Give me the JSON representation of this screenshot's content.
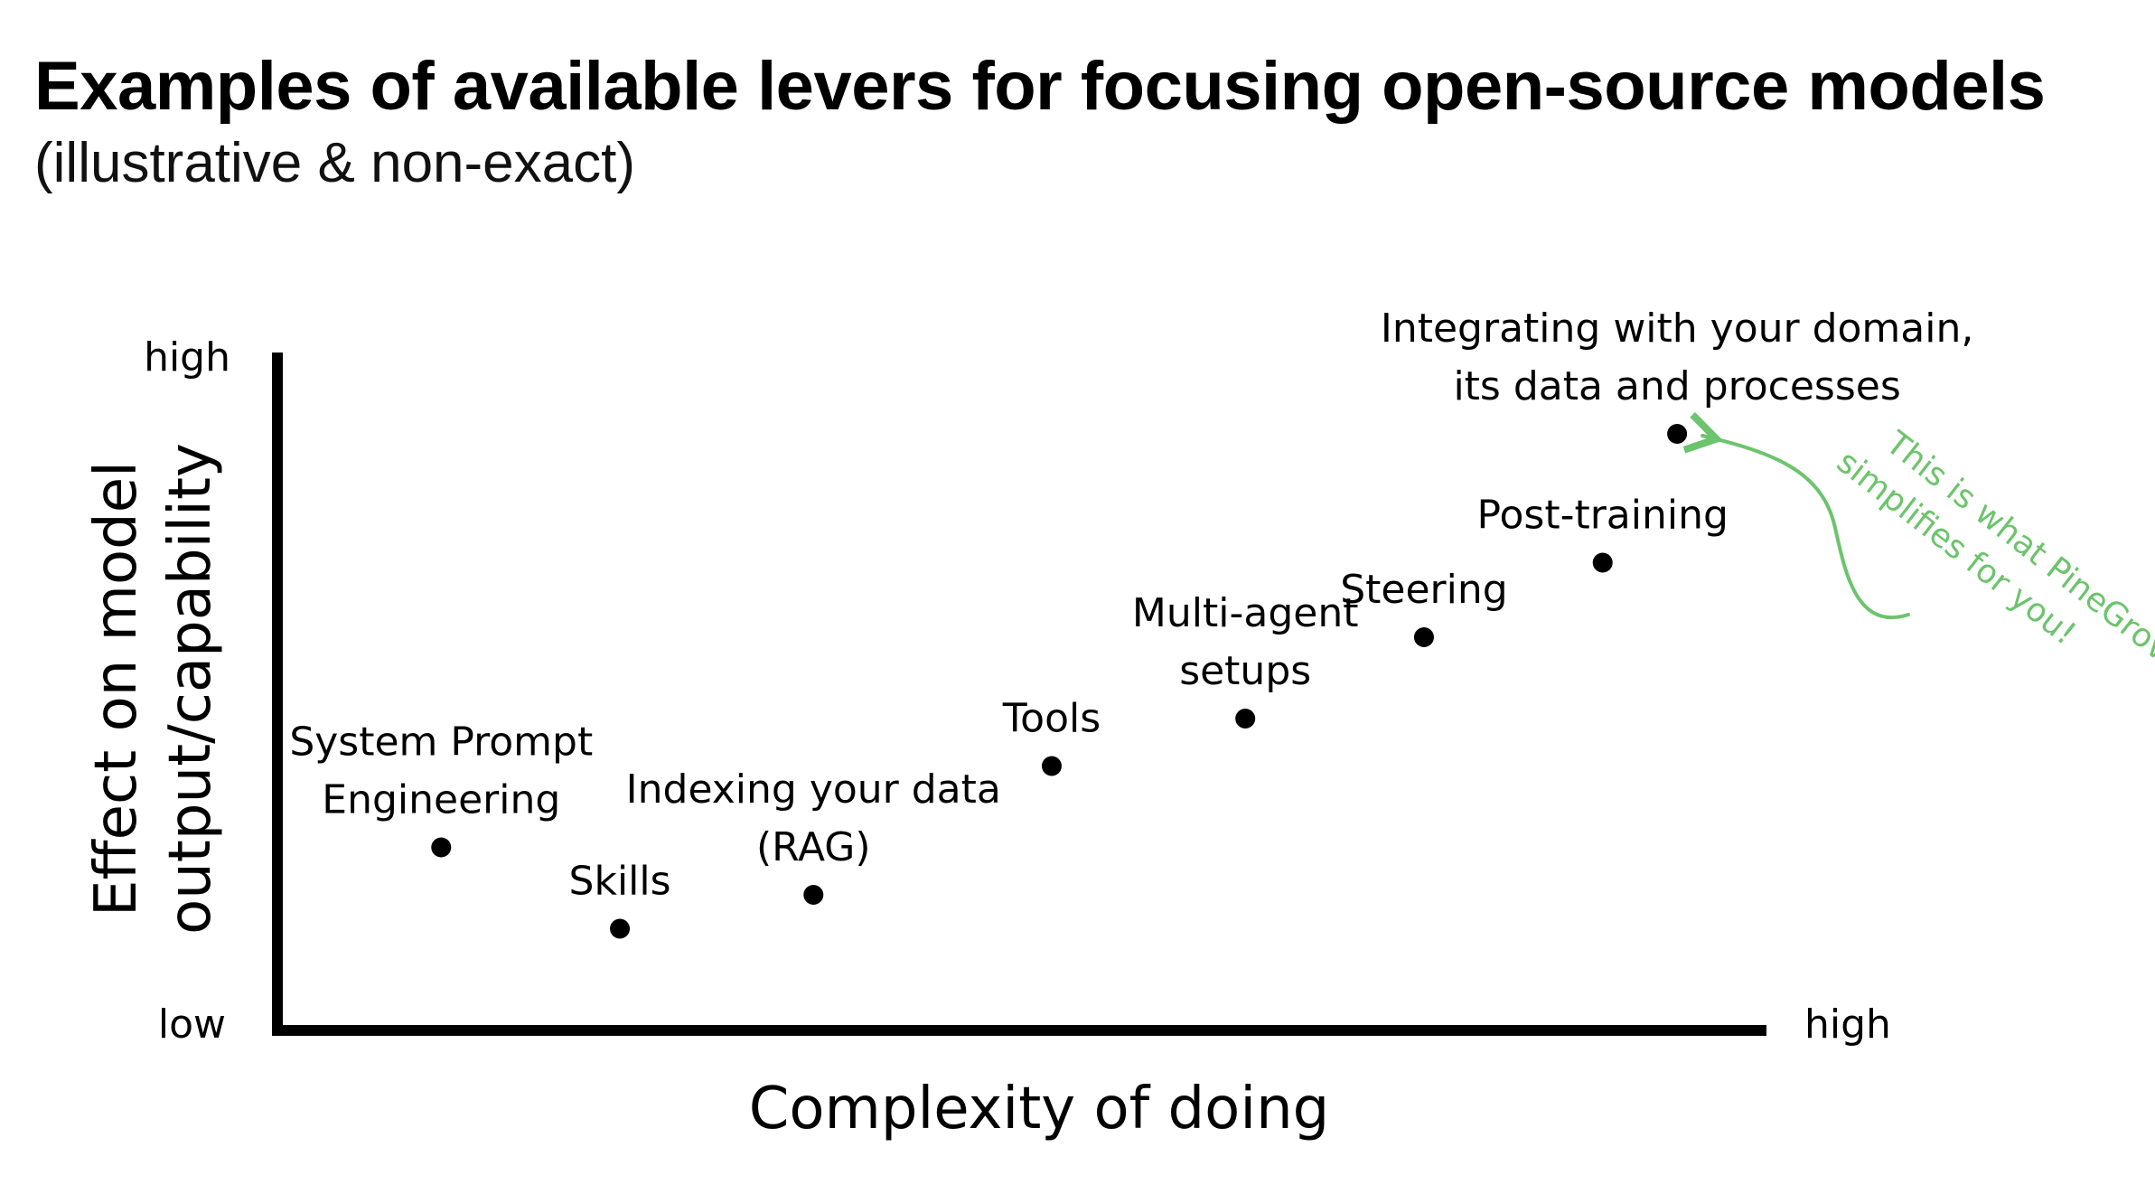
{
  "title": "Examples of available levers for focusing open-source models",
  "subtitle": "(illustrative & non-exact)",
  "chart_data": {
    "type": "scatter",
    "xlabel": "Complexity of doing",
    "ylabel_lines": [
      "Effect on model",
      "output/capability"
    ],
    "x_ticks": {
      "low": "",
      "high": "high"
    },
    "y_ticks": {
      "low": "low",
      "high": "high"
    },
    "xlim": [
      0,
      10
    ],
    "ylim": [
      0,
      10
    ],
    "grid": false,
    "points": [
      {
        "label_lines": [
          "System Prompt",
          "Engineering"
        ],
        "x": 1.1,
        "y": 2.7
      },
      {
        "label_lines": [
          "Skills"
        ],
        "x": 2.3,
        "y": 1.5
      },
      {
        "label_lines": [
          "Indexing your data",
          "(RAG)"
        ],
        "x": 3.6,
        "y": 2.0
      },
      {
        "label_lines": [
          "Tools"
        ],
        "x": 5.2,
        "y": 3.9
      },
      {
        "label_lines": [
          "Multi-agent",
          "setups"
        ],
        "x": 6.5,
        "y": 4.6
      },
      {
        "label_lines": [
          "Steering"
        ],
        "x": 7.7,
        "y": 5.8
      },
      {
        "label_lines": [
          "Post-training"
        ],
        "x": 8.9,
        "y": 6.9
      },
      {
        "label_lines": [
          "Integrating with your domain,",
          "its data and processes"
        ],
        "x": 9.4,
        "y": 8.8
      }
    ],
    "annotation": {
      "lines": [
        "This is what PineGrove",
        "simplifies for you!"
      ],
      "color": "#6cc46c"
    },
    "point_color": "#000000",
    "axis_color": "#000000"
  }
}
